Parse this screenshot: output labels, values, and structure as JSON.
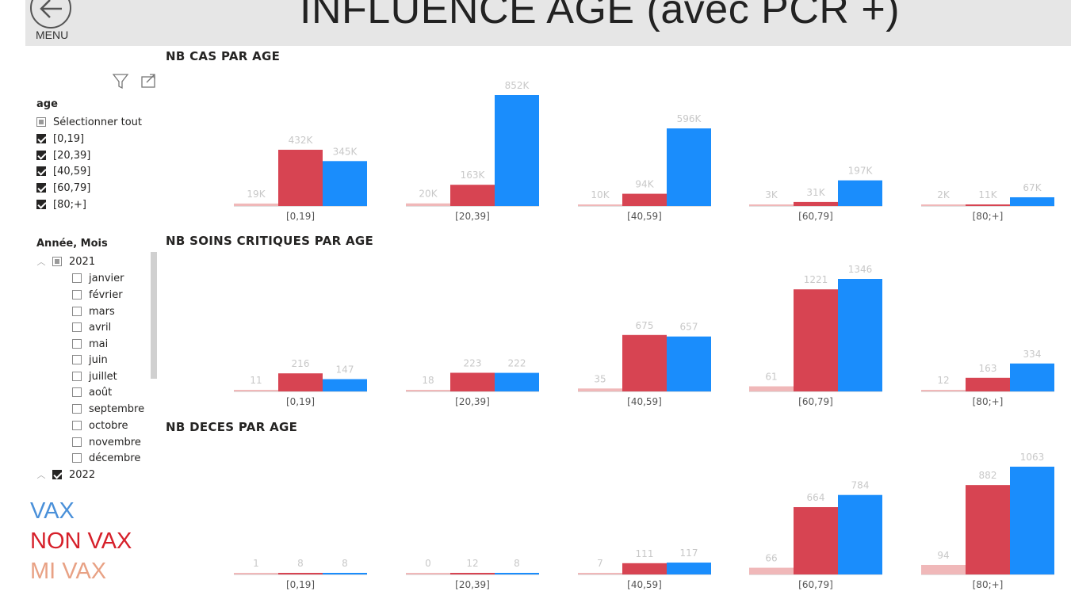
{
  "header": {
    "title": "INFLUENCE AGE (avec PCR +)",
    "menu_label": "MENU"
  },
  "slicer_age": {
    "title": "age",
    "select_all": "Sélectionner tout",
    "items": [
      {
        "label": "[0,19]",
        "checked": true
      },
      {
        "label": "[20,39]",
        "checked": true
      },
      {
        "label": "[40,59]",
        "checked": true
      },
      {
        "label": "[60,79]",
        "checked": true
      },
      {
        "label": "[80;+]",
        "checked": true
      }
    ]
  },
  "slicer_date": {
    "title": "Année, Mois",
    "year_2021": "2021",
    "months": [
      "janvier",
      "février",
      "mars",
      "avril",
      "mai",
      "juin",
      "juillet",
      "août",
      "septembre",
      "octobre",
      "novembre",
      "décembre"
    ],
    "year_2022": "2022"
  },
  "legend": [
    {
      "label": "VAX",
      "color": "#4a90d9"
    },
    {
      "label": "NON VAX",
      "color": "#d6202a"
    },
    {
      "label": "MI VAX",
      "color": "#e8a184"
    }
  ],
  "colors": {
    "mi_vax": "#f0b8b9",
    "non_vax": "#d74452",
    "vax": "#1a8dfc",
    "label": "#c8c8c8",
    "axis": "#555555"
  },
  "chart_data": [
    {
      "type": "bar",
      "title": "NB CAS PAR AGE",
      "categories": [
        "[0,19]",
        "[20,39]",
        "[40,59]",
        "[60,79]",
        "[80;+]"
      ],
      "series": [
        {
          "name": "MI VAX",
          "values": [
            19000,
            20000,
            10000,
            3000,
            2000
          ],
          "labels": [
            "19K",
            "20K",
            "10K",
            "3K",
            "2K"
          ]
        },
        {
          "name": "NON VAX",
          "values": [
            432000,
            163000,
            94000,
            31000,
            11000
          ],
          "labels": [
            "432K",
            "163K",
            "94K",
            "31K",
            "11K"
          ]
        },
        {
          "name": "VAX",
          "values": [
            345000,
            852000,
            596000,
            197000,
            67000
          ],
          "labels": [
            "345K",
            "852K",
            "596K",
            "197K",
            "67K"
          ]
        }
      ],
      "ylim": [
        0,
        852000
      ]
    },
    {
      "type": "bar",
      "title": "NB SOINS CRITIQUES PAR AGE",
      "categories": [
        "[0,19]",
        "[20,39]",
        "[40,59]",
        "[60,79]",
        "[80;+]"
      ],
      "series": [
        {
          "name": "MI VAX",
          "values": [
            11,
            18,
            35,
            61,
            12
          ],
          "labels": [
            "11",
            "18",
            "35",
            "61",
            "12"
          ]
        },
        {
          "name": "NON VAX",
          "values": [
            216,
            223,
            675,
            1221,
            163
          ],
          "labels": [
            "216",
            "223",
            "675",
            "1221",
            "163"
          ]
        },
        {
          "name": "VAX",
          "values": [
            147,
            222,
            657,
            1346,
            334
          ],
          "labels": [
            "147",
            "222",
            "657",
            "1346",
            "334"
          ]
        }
      ],
      "ylim": [
        0,
        1346
      ]
    },
    {
      "type": "bar",
      "title": "NB DECES PAR AGE",
      "categories": [
        "[0,19]",
        "[20,39]",
        "[40,59]",
        "[60,79]",
        "[80;+]"
      ],
      "series": [
        {
          "name": "MI VAX",
          "values": [
            1,
            0,
            7,
            66,
            94
          ],
          "labels": [
            "1",
            "0",
            "7",
            "66",
            "94"
          ]
        },
        {
          "name": "NON VAX",
          "values": [
            8,
            12,
            111,
            664,
            882
          ],
          "labels": [
            "8",
            "12",
            "111",
            "664",
            "882"
          ]
        },
        {
          "name": "VAX",
          "values": [
            8,
            8,
            117,
            784,
            1063
          ],
          "labels": [
            "8",
            "8",
            "117",
            "784",
            "1063"
          ]
        }
      ],
      "ylim": [
        0,
        1063
      ]
    }
  ]
}
